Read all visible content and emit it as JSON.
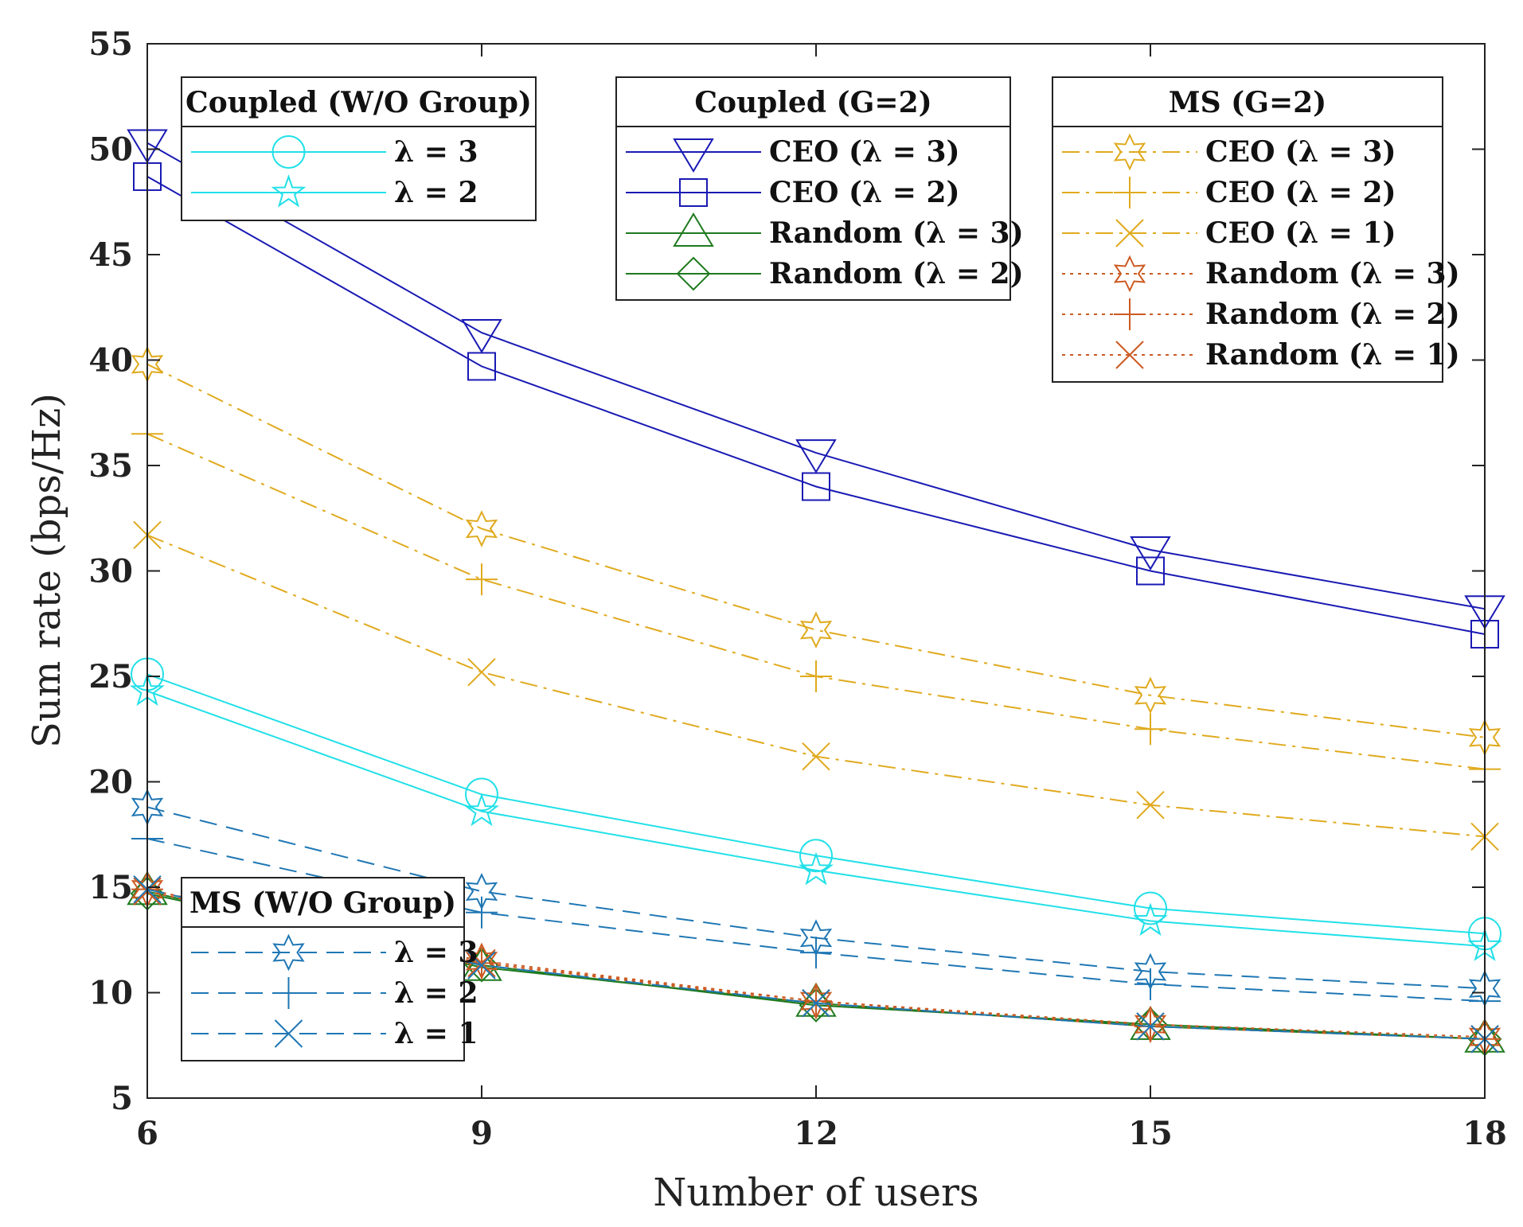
{
  "chart_data": {
    "type": "line",
    "title": "",
    "xlabel": "Number of users",
    "ylabel": "Sum rate (bps/Hz)",
    "x": [
      6,
      9,
      12,
      15,
      18
    ],
    "xticks": [
      "6",
      "9",
      "12",
      "15",
      "18"
    ],
    "yticks": [
      "5",
      "10",
      "15",
      "20",
      "25",
      "30",
      "35",
      "40",
      "45",
      "50",
      "55"
    ],
    "xlim": [
      6,
      18
    ],
    "ylim": [
      5,
      55
    ],
    "grid": false,
    "colors": {
      "blue": "#1a1ab4",
      "green": "#1f7a1f",
      "cyan": "#22e0e8",
      "gold": "#e0aa1e",
      "rust": "#cc5a22",
      "steel": "#1f77b4"
    },
    "series": [
      {
        "name": "Coupled (W/O Group) λ = 3",
        "values": [
          25.1,
          19.4,
          16.5,
          14.0,
          12.8
        ],
        "color": "#22e0e8",
        "dash": "solid",
        "marker": "circle"
      },
      {
        "name": "Coupled (W/O Group) λ = 2",
        "values": [
          24.3,
          18.6,
          15.8,
          13.4,
          12.2
        ],
        "color": "#22e0e8",
        "dash": "solid",
        "marker": "star5"
      },
      {
        "name": "Coupled (G=2) CEO (λ = 3)",
        "values": [
          50.3,
          41.3,
          35.6,
          31.0,
          28.2
        ],
        "color": "#1a1ab4",
        "dash": "solid",
        "marker": "triangle-down"
      },
      {
        "name": "Coupled (G=2) CEO (λ = 2)",
        "values": [
          48.7,
          39.7,
          34.0,
          30.0,
          27.0
        ],
        "color": "#1a1ab4",
        "dash": "solid",
        "marker": "square"
      },
      {
        "name": "Coupled (G=2) Random (λ = 3)",
        "values": [
          14.8,
          11.2,
          9.5,
          8.4,
          7.8
        ],
        "color": "#1f7a1f",
        "dash": "solid",
        "marker": "triangle-up"
      },
      {
        "name": "Coupled (G=2) Random (λ = 2)",
        "values": [
          14.7,
          11.3,
          9.4,
          8.5,
          7.8
        ],
        "color": "#1f7a1f",
        "dash": "solid",
        "marker": "diamond"
      },
      {
        "name": "MS (G=2) CEO (λ = 3)",
        "values": [
          39.8,
          32.0,
          27.2,
          24.1,
          22.1
        ],
        "color": "#e0aa1e",
        "dash": "dashdot",
        "marker": "star6"
      },
      {
        "name": "MS (G=2) CEO (λ = 2)",
        "values": [
          36.5,
          29.6,
          25.0,
          22.5,
          20.6
        ],
        "color": "#e0aa1e",
        "dash": "dashdot",
        "marker": "plus"
      },
      {
        "name": "MS (G=2) CEO (λ = 1)",
        "values": [
          31.7,
          25.2,
          21.2,
          18.9,
          17.4
        ],
        "color": "#e0aa1e",
        "dash": "dashdot",
        "marker": "x"
      },
      {
        "name": "MS (G=2) Random (λ = 3)",
        "values": [
          14.9,
          11.5,
          9.6,
          8.5,
          7.9
        ],
        "color": "#cc5a22",
        "dash": "dotted",
        "marker": "star6"
      },
      {
        "name": "MS (G=2) Random (λ = 2)",
        "values": [
          14.9,
          11.4,
          9.6,
          8.4,
          7.8
        ],
        "color": "#cc5a22",
        "dash": "dotted",
        "marker": "plus"
      },
      {
        "name": "MS (G=2) Random (λ = 1)",
        "values": [
          14.8,
          11.4,
          9.5,
          8.4,
          7.8
        ],
        "color": "#cc5a22",
        "dash": "dotted",
        "marker": "x"
      },
      {
        "name": "MS (W/O Group) λ = 3",
        "values": [
          18.8,
          14.8,
          12.6,
          11.0,
          10.2
        ],
        "color": "#1f77b4",
        "dash": "dashed",
        "marker": "star6"
      },
      {
        "name": "MS (W/O Group) λ = 2",
        "values": [
          17.3,
          13.8,
          11.9,
          10.4,
          9.6
        ],
        "color": "#1f77b4",
        "dash": "dashed",
        "marker": "plus"
      },
      {
        "name": "MS (W/O Group) λ = 1",
        "values": [
          14.9,
          11.3,
          9.5,
          8.4,
          7.8
        ],
        "color": "#1f77b4",
        "dash": "dashed",
        "marker": "x"
      }
    ],
    "legends": [
      {
        "title": "Coupled (W/O Group)",
        "placement": "top-left",
        "entries": [
          {
            "label": "λ = 3",
            "series": 0
          },
          {
            "label": "λ = 2",
            "series": 1
          }
        ]
      },
      {
        "title": "Coupled (G=2)",
        "placement": "top-center",
        "entries": [
          {
            "label": "CEO (λ = 3)",
            "series": 2
          },
          {
            "label": "CEO (λ = 2)",
            "series": 3
          },
          {
            "label": "Random (λ = 3)",
            "series": 4
          },
          {
            "label": "Random (λ = 2)",
            "series": 5
          }
        ]
      },
      {
        "title": "MS (G=2)",
        "placement": "top-right",
        "entries": [
          {
            "label": "CEO (λ = 3)",
            "series": 6
          },
          {
            "label": "CEO (λ = 2)",
            "series": 7
          },
          {
            "label": "CEO (λ = 1)",
            "series": 8
          },
          {
            "label": "Random (λ = 3)",
            "series": 9
          },
          {
            "label": "Random (λ = 2)",
            "series": 10
          },
          {
            "label": "Random (λ = 1)",
            "series": 11
          }
        ]
      },
      {
        "title": "MS (W/O Group)",
        "placement": "bottom-left",
        "entries": [
          {
            "label": "λ = 3",
            "series": 12
          },
          {
            "label": "λ = 2",
            "series": 13
          },
          {
            "label": "λ = 1",
            "series": 14
          }
        ]
      }
    ]
  }
}
